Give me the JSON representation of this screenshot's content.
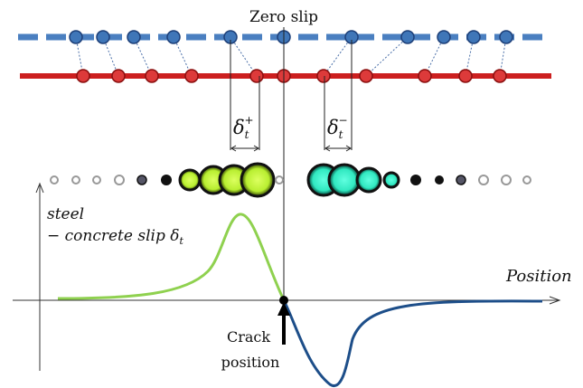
{
  "labels": {
    "zero_slip": "Zero slip",
    "delta_plus_base": "δ",
    "delta_plus_sub": "t",
    "delta_plus_sup": "+",
    "delta_minus_base": "δ",
    "delta_minus_sub": "t",
    "delta_minus_sup": "−",
    "y_axis_line1": "steel",
    "y_axis_line2": "− concrete slip δ",
    "y_axis_line2_sub": "t",
    "x_axis": "Position",
    "crack_line1": "Crack",
    "crack_line2": "position"
  },
  "colors": {
    "rebar_blue": "#4a7fc0",
    "concrete_red": "#cc1f1f",
    "node_blue": "#3f76b8",
    "node_red": "#dd3a3a",
    "slip_positive": "#8fd14f",
    "slip_negative": "#1d4e89",
    "bubble_green": "#ccff44",
    "bubble_cyan": "#44ffd0"
  }
}
